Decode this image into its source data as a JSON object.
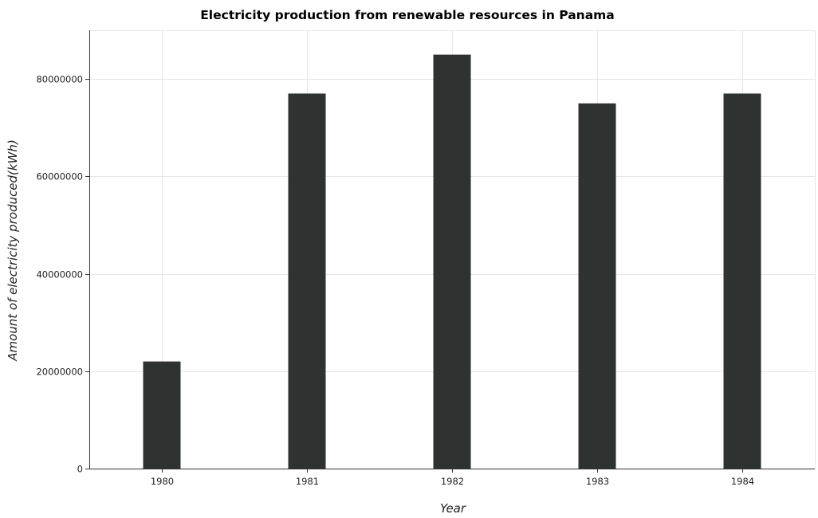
{
  "chart_data": {
    "type": "bar",
    "title": "Electricity production from renewable resources in Panama",
    "xlabel": "Year",
    "ylabel": "Amount of electricity produced(kWh)",
    "categories": [
      "1980",
      "1981",
      "1982",
      "1983",
      "1984"
    ],
    "values": [
      22000000,
      77000000,
      85000000,
      75000000,
      77000000
    ],
    "ylim": [
      0,
      90000000
    ],
    "yticks": [
      0,
      20000000,
      40000000,
      60000000,
      80000000
    ],
    "ytick_labels": [
      "0",
      "20000000",
      "40000000",
      "60000000",
      "80000000"
    ],
    "grid": true,
    "bar_color": "#2e3332"
  }
}
